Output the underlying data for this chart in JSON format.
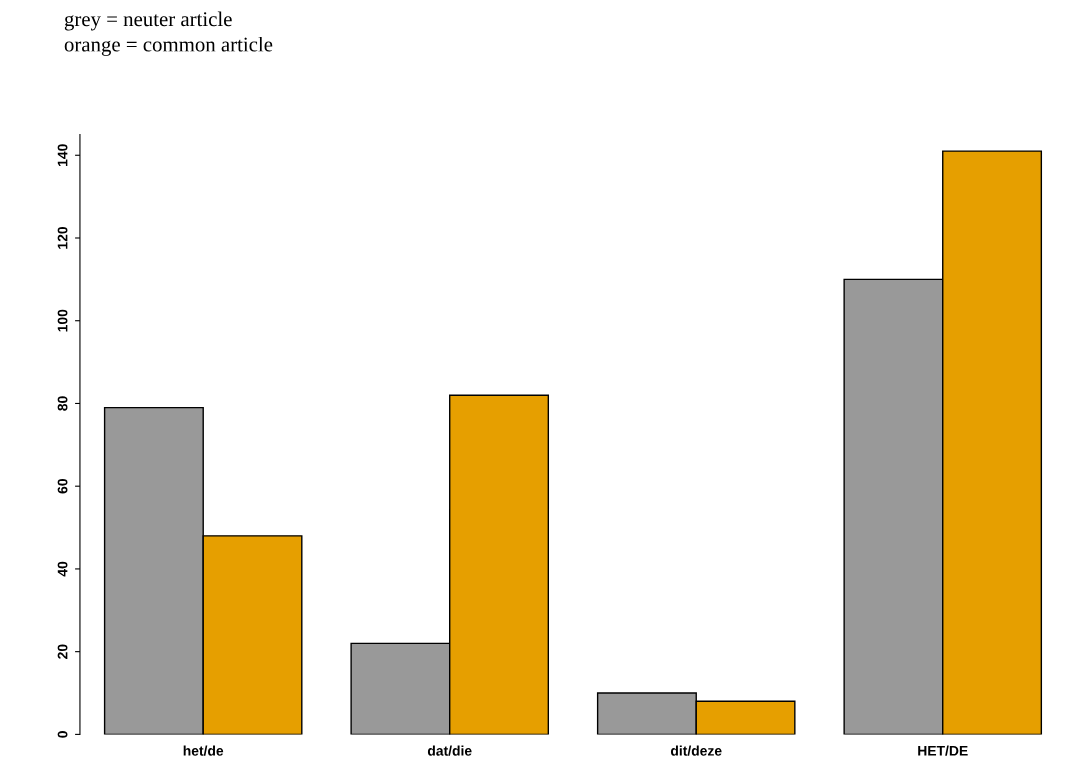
{
  "chart_data": {
    "type": "bar",
    "categories": [
      "het/de",
      "dat/die",
      "dit/deze",
      "HET/DE"
    ],
    "series": [
      {
        "color": "#999999",
        "values": [
          79,
          22,
          10,
          110
        ]
      },
      {
        "color": "#e69f00",
        "values": [
          48,
          82,
          8,
          141
        ]
      }
    ],
    "ylim": [
      0,
      145
    ],
    "yticks": [
      0,
      20,
      40,
      60,
      80,
      100,
      120,
      140
    ],
    "grid": false,
    "legend": false,
    "annotations": [
      "grey = neuter article",
      "orange = common article"
    ]
  }
}
